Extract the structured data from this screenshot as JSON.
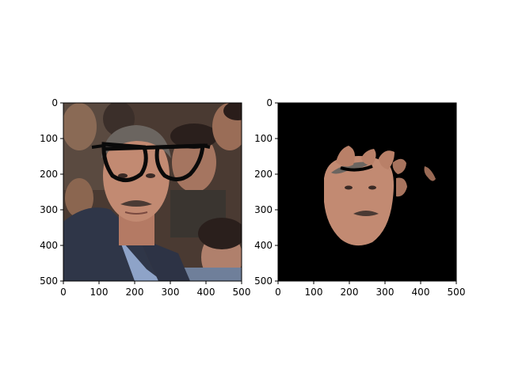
{
  "chart_data": [
    {
      "type": "image",
      "title": "",
      "xlabel": "",
      "ylabel": "",
      "xlim": [
        0,
        500
      ],
      "ylim": [
        500,
        0
      ],
      "xticks": [
        0,
        100,
        200,
        300,
        400,
        500
      ],
      "yticks": [
        0,
        100,
        200,
        300,
        400,
        500
      ],
      "content": "face-photo-with-glasses-overlay",
      "grid": false
    },
    {
      "type": "image",
      "title": "",
      "xlabel": "",
      "ylabel": "",
      "xlim": [
        0,
        500
      ],
      "ylim": [
        500,
        0
      ],
      "xticks": [
        0,
        100,
        200,
        300,
        400,
        500
      ],
      "yticks": [
        0,
        100,
        200,
        300,
        400,
        500
      ],
      "content": "segmented-face-mask",
      "background": "#000000",
      "grid": false
    }
  ]
}
